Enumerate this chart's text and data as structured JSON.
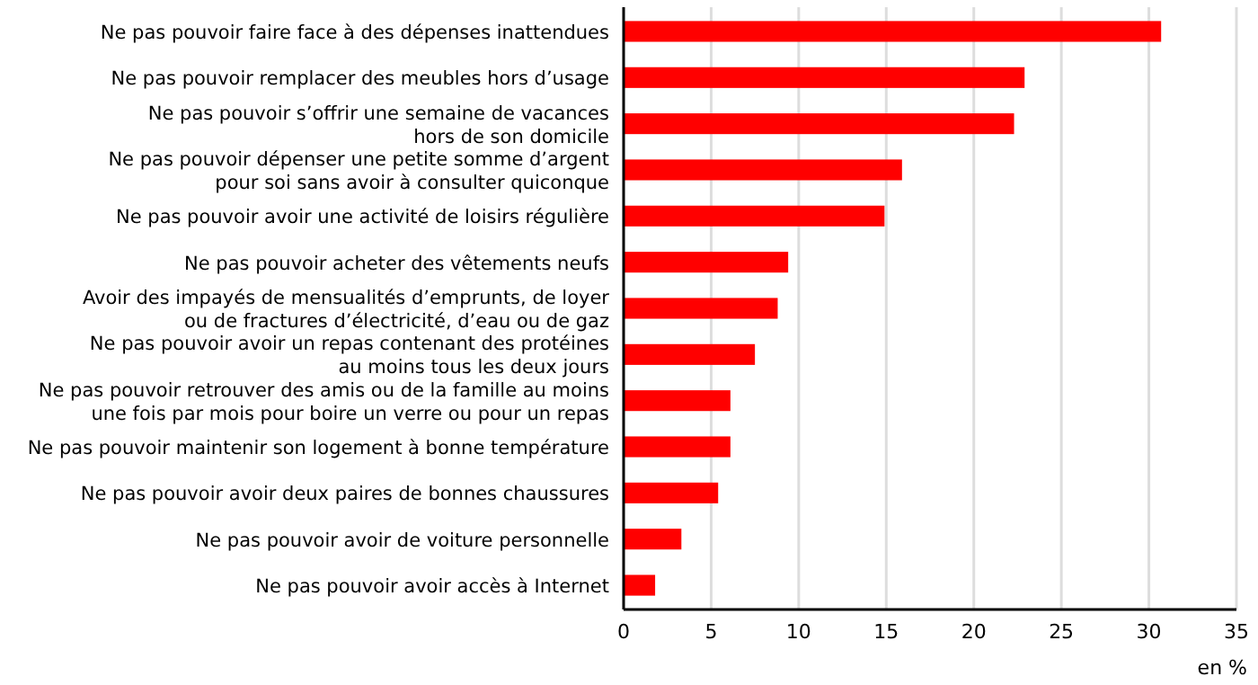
{
  "chart_data": {
    "type": "bar",
    "orientation": "horizontal",
    "xlabel": "en %",
    "categories": [
      "Ne pas pouvoir faire face à des dépenses inattendues",
      "Ne pas pouvoir remplacer des meubles hors d’usage",
      "Ne pas pouvoir s’offrir une semaine de vacances\nhors de son domicile",
      "Ne pas pouvoir dépenser une petite somme d’argent\npour soi sans avoir à consulter quiconque",
      "Ne pas pouvoir avoir une activité de loisirs régulière",
      "Ne pas pouvoir acheter des vêtements neufs",
      "Avoir des impayés de mensualités d’emprunts, de loyer\nou de fractures d’électricité, d’eau ou de gaz",
      "Ne pas pouvoir avoir un repas contenant des protéines\nau moins tous les deux jours",
      "Ne pas pouvoir retrouver des amis ou de la famille au moins\nune fois par mois pour boire un verre ou pour un repas",
      "Ne pas pouvoir maintenir son logement à bonne température",
      "Ne pas pouvoir avoir deux paires de bonnes chaussures",
      "Ne pas pouvoir avoir de voiture personnelle",
      "Ne pas pouvoir avoir accès à Internet"
    ],
    "values": [
      30.7,
      22.9,
      22.3,
      15.9,
      14.9,
      9.4,
      8.8,
      7.5,
      6.1,
      6.1,
      5.4,
      3.3,
      1.8
    ],
    "color": "#ff0000",
    "xlim": [
      0,
      35
    ],
    "xticks": [
      0,
      5,
      10,
      15,
      20,
      25,
      30,
      35
    ],
    "grid": "x"
  }
}
